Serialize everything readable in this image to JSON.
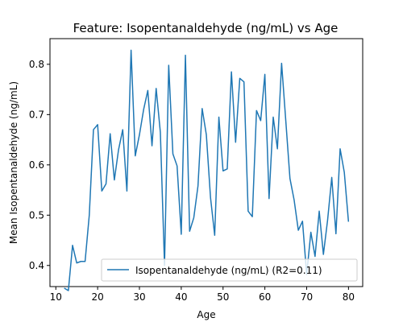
{
  "chart_data": {
    "type": "line",
    "title": "Feature: Isopentanaldehyde (ng/mL) vs Age",
    "xlabel": "Age",
    "ylabel": "Mean Isopentanaldehyde (ng/mL)",
    "xlim": [
      8.6,
      83.4
    ],
    "ylim": [
      0.358,
      0.851
    ],
    "xticks": [
      10,
      20,
      30,
      40,
      50,
      60,
      70,
      80
    ],
    "yticks": [
      0.4,
      0.5,
      0.6,
      0.7,
      0.8
    ],
    "xtick_labels": [
      "10",
      "20",
      "30",
      "40",
      "50",
      "60",
      "70",
      "80"
    ],
    "ytick_labels": [
      "0.4",
      "0.5",
      "0.6",
      "0.7",
      "0.8"
    ],
    "grid": false,
    "legend_position": "lower-right",
    "series": [
      {
        "name": "Isopentanaldehyde (ng/mL) (R2=0.11)",
        "color": "#1f77b4",
        "x": [
          12,
          13,
          14,
          15,
          16,
          17,
          18,
          19,
          20,
          21,
          22,
          23,
          24,
          25,
          26,
          27,
          28,
          29,
          30,
          31,
          32,
          33,
          34,
          35,
          36,
          37,
          38,
          39,
          40,
          41,
          42,
          43,
          44,
          45,
          46,
          47,
          48,
          49,
          50,
          51,
          52,
          53,
          54,
          55,
          56,
          57,
          58,
          59,
          60,
          61,
          62,
          63,
          64,
          65,
          66,
          67,
          68,
          69,
          70,
          71,
          72,
          73,
          74,
          75,
          76,
          77,
          78,
          79,
          80
        ],
        "y": [
          0.355,
          0.35,
          0.44,
          0.405,
          0.408,
          0.408,
          0.5,
          0.67,
          0.68,
          0.548,
          0.562,
          0.662,
          0.57,
          0.63,
          0.67,
          0.548,
          0.828,
          0.618,
          0.66,
          0.71,
          0.748,
          0.638,
          0.752,
          0.665,
          0.4,
          0.798,
          0.622,
          0.598,
          0.462,
          0.818,
          0.468,
          0.495,
          0.558,
          0.712,
          0.66,
          0.535,
          0.46,
          0.695,
          0.588,
          0.592,
          0.785,
          0.645,
          0.772,
          0.765,
          0.508,
          0.497,
          0.708,
          0.688,
          0.78,
          0.533,
          0.695,
          0.632,
          0.802,
          0.688,
          0.573,
          0.53,
          0.47,
          0.488,
          0.382,
          0.466,
          0.418,
          0.508,
          0.422,
          0.49,
          0.575,
          0.463,
          0.632,
          0.585,
          0.487
        ]
      }
    ]
  }
}
